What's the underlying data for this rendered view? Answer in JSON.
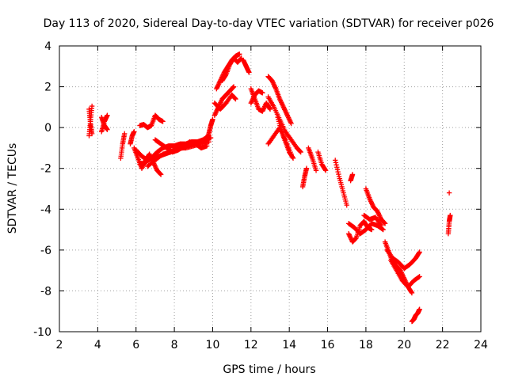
{
  "chart_data": {
    "type": "scatter",
    "title": "Day 113 of 2020, Sidereal Day-to-day VTEC variation (SDTVAR) for receiver p026",
    "xlabel": "GPS time / hours",
    "ylabel": "SDTVAR / TECUs",
    "xlim": [
      2,
      24
    ],
    "ylim": [
      -10,
      4
    ],
    "xticks": [
      "2",
      "4",
      "6",
      "8",
      "10",
      "12",
      "14",
      "16",
      "18",
      "20",
      "22",
      "24"
    ],
    "yticks": [
      "-10",
      "-8",
      "-6",
      "-4",
      "-2",
      "0",
      "2",
      "4"
    ],
    "grid": true,
    "marker": "+",
    "color": "#ff0000",
    "segments": [
      {
        "x": [
          3.55,
          3.62,
          3.7
        ],
        "y": [
          -0.4,
          0.3,
          1.05
        ]
      },
      {
        "x": [
          3.55,
          3.62,
          3.7
        ],
        "y": [
          0.9,
          0.2,
          -0.3
        ]
      },
      {
        "x": [
          4.2,
          4.35,
          4.5
        ],
        "y": [
          -0.2,
          0.3,
          0.6
        ]
      },
      {
        "x": [
          4.2,
          4.35,
          4.5
        ],
        "y": [
          0.5,
          0.1,
          -0.1
        ]
      },
      {
        "x": [
          5.2,
          5.3,
          5.4
        ],
        "y": [
          -1.5,
          -0.8,
          -0.3
        ]
      },
      {
        "x": [
          5.7,
          5.8,
          5.9
        ],
        "y": [
          -0.8,
          -0.4,
          -0.2
        ]
      },
      {
        "x": [
          5.9,
          6.1,
          6.3,
          6.5,
          6.7,
          6.9,
          7.1,
          7.3
        ],
        "y": [
          -1.0,
          -1.5,
          -2.0,
          -1.6,
          -1.3,
          -1.7,
          -2.1,
          -2.3
        ]
      },
      {
        "x": [
          6.0,
          6.3,
          6.6,
          6.9,
          7.2,
          7.5,
          7.8,
          8.1,
          8.4,
          8.7,
          9.0,
          9.3,
          9.6,
          9.9
        ],
        "y": [
          -1.1,
          -1.4,
          -1.6,
          -1.5,
          -1.4,
          -1.3,
          -1.2,
          -1.1,
          -1.0,
          -0.9,
          -0.8,
          -0.7,
          -0.6,
          -0.5
        ]
      },
      {
        "x": [
          6.2,
          6.5,
          6.8,
          7.1,
          7.4,
          7.7,
          8.0,
          8.3,
          8.6,
          8.9,
          9.2,
          9.5,
          9.8
        ],
        "y": [
          -1.8,
          -1.7,
          -1.5,
          -1.2,
          -1.0,
          -0.9,
          -0.9,
          -0.8,
          -0.8,
          -0.7,
          -0.7,
          -0.6,
          -0.4
        ]
      },
      {
        "x": [
          6.2,
          6.4,
          6.6,
          6.8,
          7.0,
          7.2,
          7.4
        ],
        "y": [
          0.1,
          0.15,
          0.0,
          0.1,
          0.6,
          0.4,
          0.3
        ]
      },
      {
        "x": [
          7.0,
          7.3,
          7.6,
          7.9,
          8.2,
          8.5,
          8.8,
          9.1,
          9.4,
          9.7
        ],
        "y": [
          -0.6,
          -0.8,
          -1.0,
          -1.2,
          -1.1,
          -0.9,
          -0.7,
          -0.8,
          -1.0,
          -0.9
        ]
      },
      {
        "x": [
          6.6,
          7.0,
          7.4,
          7.8,
          8.2,
          8.6,
          9.0,
          9.4,
          9.8
        ],
        "y": [
          -1.9,
          -1.6,
          -1.3,
          -1.2,
          -1.0,
          -1.0,
          -0.9,
          -0.8,
          -0.7
        ]
      },
      {
        "x": [
          9.6,
          9.8,
          9.9,
          10.0
        ],
        "y": [
          -0.7,
          -0.3,
          0.1,
          0.4
        ]
      },
      {
        "x": [
          10.1,
          10.3,
          10.5,
          10.7,
          10.9,
          11.1
        ],
        "y": [
          0.6,
          1.0,
          1.4,
          1.6,
          1.8,
          2.0
        ]
      },
      {
        "x": [
          10.1,
          10.4,
          10.7,
          11.0,
          11.2
        ],
        "y": [
          1.2,
          0.9,
          1.2,
          1.6,
          1.4
        ]
      },
      {
        "x": [
          10.2,
          10.4,
          10.6,
          10.8,
          11.0,
          11.2,
          11.4
        ],
        "y": [
          1.9,
          2.3,
          2.7,
          3.0,
          3.3,
          3.5,
          3.6
        ]
      },
      {
        "x": [
          10.5,
          10.7,
          10.9,
          11.1,
          11.3,
          11.5
        ],
        "y": [
          2.3,
          2.6,
          3.1,
          3.4,
          3.2,
          3.4
        ]
      },
      {
        "x": [
          11.6,
          11.75,
          11.9
        ],
        "y": [
          3.3,
          3.0,
          2.7
        ]
      },
      {
        "x": [
          12.0,
          12.2,
          12.4,
          12.6,
          12.8,
          13.0
        ],
        "y": [
          1.9,
          1.4,
          0.9,
          0.8,
          1.2,
          0.9
        ]
      },
      {
        "x": [
          12.0,
          12.2,
          12.4,
          12.6
        ],
        "y": [
          1.2,
          1.6,
          1.8,
          1.7
        ]
      },
      {
        "x": [
          12.9,
          13.1,
          13.3,
          13.5,
          13.7,
          13.9,
          14.1
        ],
        "y": [
          2.5,
          2.3,
          1.9,
          1.4,
          1.0,
          0.6,
          0.2
        ]
      },
      {
        "x": [
          12.9,
          13.2,
          13.5,
          13.8,
          14.1,
          14.4,
          14.6
        ],
        "y": [
          1.5,
          1.0,
          0.4,
          -0.2,
          -0.6,
          -1.0,
          -1.2
        ]
      },
      {
        "x": [
          12.9,
          13.2,
          13.5,
          13.8,
          14.1
        ],
        "y": [
          -0.8,
          -0.4,
          0.0,
          -0.6,
          -1.3
        ]
      },
      {
        "x": [
          13.4,
          13.6,
          13.8,
          14.0,
          14.2
        ],
        "y": [
          0.5,
          -0.2,
          -0.7,
          -1.2,
          -1.5
        ]
      },
      {
        "x": [
          14.7,
          14.8,
          14.9
        ],
        "y": [
          -2.9,
          -2.4,
          -2.0
        ]
      },
      {
        "x": [
          15.0,
          15.2,
          15.4
        ],
        "y": [
          -1.0,
          -1.5,
          -2.1
        ]
      },
      {
        "x": [
          15.5,
          15.7,
          15.9
        ],
        "y": [
          -1.2,
          -1.8,
          -2.1
        ]
      },
      {
        "x": [
          16.4,
          16.6,
          16.8,
          17.0
        ],
        "y": [
          -1.6,
          -2.4,
          -3.1,
          -3.8
        ]
      },
      {
        "x": [
          17.2,
          17.3
        ],
        "y": [
          -2.6,
          -2.3
        ]
      },
      {
        "x": [
          17.1,
          17.3,
          17.5,
          17.7,
          17.9,
          18.1,
          18.3
        ],
        "y": [
          -5.2,
          -5.6,
          -5.4,
          -4.8,
          -4.6,
          -4.9,
          -5.0
        ]
      },
      {
        "x": [
          17.1,
          17.4,
          17.7,
          18.0,
          18.3,
          18.6,
          18.9
        ],
        "y": [
          -4.7,
          -4.9,
          -5.2,
          -5.0,
          -4.7,
          -4.8,
          -5.0
        ]
      },
      {
        "x": [
          18.0,
          18.2,
          18.4,
          18.6,
          18.8,
          19.0
        ],
        "y": [
          -3.0,
          -3.5,
          -3.9,
          -4.1,
          -4.5,
          -4.7
        ]
      },
      {
        "x": [
          17.9,
          18.2,
          18.5,
          18.8
        ],
        "y": [
          -4.3,
          -4.5,
          -4.4,
          -4.8
        ]
      },
      {
        "x": [
          19.0,
          19.2,
          19.4,
          19.6,
          19.8,
          20.0,
          20.2,
          20.4
        ],
        "y": [
          -5.6,
          -6.1,
          -6.6,
          -6.8,
          -7.0,
          -7.4,
          -7.8,
          -8.1
        ]
      },
      {
        "x": [
          19.1,
          19.4,
          19.7,
          20.0,
          20.3,
          20.6,
          20.8
        ],
        "y": [
          -6.0,
          -6.4,
          -6.6,
          -6.9,
          -6.7,
          -6.4,
          -6.1
        ]
      },
      {
        "x": [
          19.3,
          19.6,
          19.9,
          20.2,
          20.5,
          20.8
        ],
        "y": [
          -6.5,
          -7.0,
          -7.5,
          -7.8,
          -7.5,
          -7.3
        ]
      },
      {
        "x": [
          20.4,
          20.5,
          20.6,
          20.7,
          20.8
        ],
        "y": [
          -9.5,
          -9.4,
          -9.2,
          -9.1,
          -8.9
        ]
      },
      {
        "x": [
          22.3,
          22.35,
          22.4
        ],
        "y": [
          -5.2,
          -4.6,
          -4.3
        ]
      },
      {
        "x": [
          22.35
        ],
        "y": [
          -3.2
        ]
      }
    ]
  }
}
